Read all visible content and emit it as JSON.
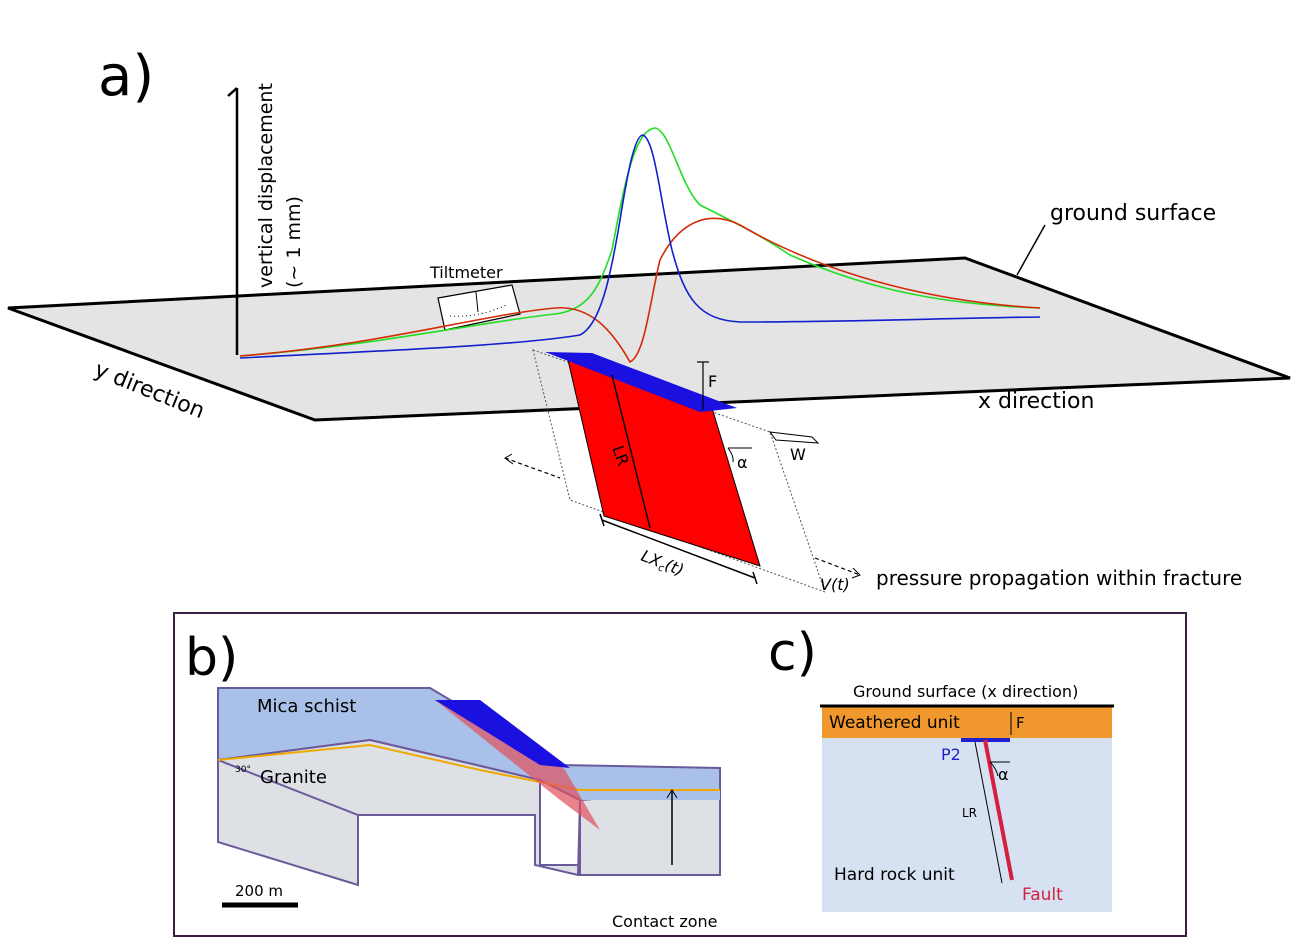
{
  "panel_a": {
    "label": "a)",
    "axis_label_1": "vertical displacement",
    "axis_label_2": "(~ 1 mm)",
    "tiltmeter": "Tiltmeter",
    "ground_surface": "ground surface",
    "y_direction": "y direction",
    "x_direction": "x direction",
    "f_label": "F",
    "lr_label": "LR",
    "alpha_label": "α",
    "w_label": "W",
    "lx_label": {
      "main": "LX",
      "sub": "c",
      "tail": "(t)"
    },
    "v_label": "V(t)",
    "pressure_label": "pressure propagation within fracture"
  },
  "panel_b": {
    "label": "b)",
    "mica_schist": "Mica schist",
    "granite": "Granite",
    "angle": "30°",
    "scale": "200 m",
    "contact_zone": "Contact zone"
  },
  "panel_c": {
    "label": "c)",
    "ground_surface": "Ground surface (x direction)",
    "weathered_unit": "Weathered unit",
    "f_label": "F",
    "p2_label": "P2",
    "alpha_label": "α",
    "lr_label": "LR",
    "hard_rock_unit": "Hard rock unit",
    "fault_label": "Fault"
  }
}
